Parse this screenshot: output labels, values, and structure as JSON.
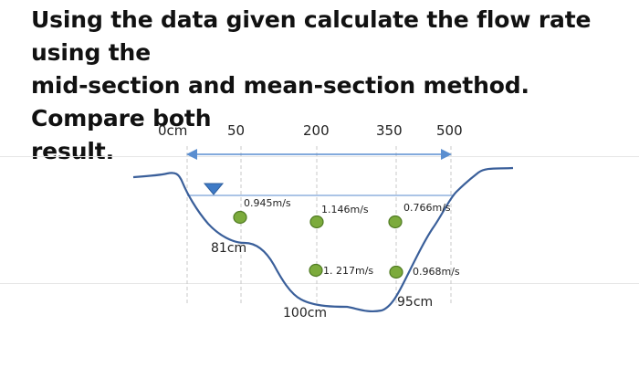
{
  "question": {
    "line1": "Using the data given calculate the flow rate using the",
    "line2": "mid-section and mean-section method. Compare both",
    "line3": "result."
  },
  "diagram": {
    "stations": [
      "0cm",
      "50",
      "200",
      "350",
      "500"
    ],
    "velocities": {
      "v1": "0.945m/s",
      "v2": "1.146m/s",
      "v3": "0.766m/s",
      "v4": "1. 217m/s",
      "v5": "0.968m/s"
    },
    "depths": {
      "d1": "81cm",
      "d2": "100cm",
      "d3": "95cm"
    },
    "colors": {
      "channel": "#3a5f9a",
      "arrow": "#5a8ed0",
      "water_surface": "#8fb0dd",
      "marker_fill": "#7cab3c",
      "marker_stroke": "#4f7a22",
      "triangle": "#3e7ac6",
      "dashed": "#c8c8c8"
    }
  }
}
